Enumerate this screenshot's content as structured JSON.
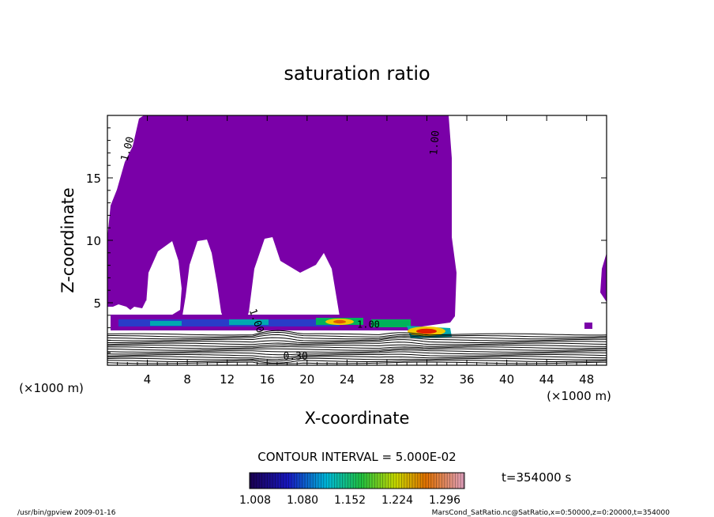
{
  "chart_data": {
    "type": "heatmap",
    "title": "saturation ratio",
    "xlabel": "X-coordinate",
    "ylabel": "Z-coordinate",
    "x_unit": "(×1000 m)",
    "xlim": [
      0,
      50
    ],
    "ylim": [
      0,
      20
    ],
    "x_ticks": [
      4,
      8,
      12,
      16,
      20,
      24,
      28,
      32,
      36,
      40,
      44,
      48
    ],
    "y_ticks": [
      5,
      10,
      15
    ],
    "contour_labels": [
      "1.00",
      "1.00",
      "1.00",
      "1.00",
      "0.30"
    ],
    "saturated_region_color": "#7a00a8",
    "colorbar_ticks": [
      "1.008",
      "1.080",
      "1.152",
      "1.224",
      "1.296"
    ],
    "colorbar_range": [
      1.0,
      1.33
    ],
    "contour_interval_text": "CONTOUR INTERVAL = 5.000E-02",
    "time_text": "t=354000  s"
  },
  "footer": {
    "left": "/usr/bin/gpview   2009-01-16",
    "right": "MarsCond_SatRatio.nc@SatRatio,x=0:50000,z=0:20000,t=354000"
  }
}
